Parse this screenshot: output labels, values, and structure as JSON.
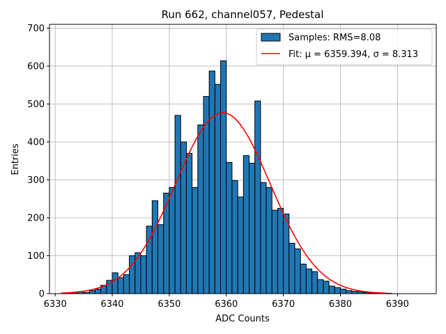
{
  "chart_data": {
    "type": "histogram",
    "title": "Run 662, channel057, Pedestal",
    "xlabel": "ADC Counts",
    "ylabel": "Entries",
    "xlim": [
      6329.0,
      6396.8
    ],
    "ylim": [
      0,
      710
    ],
    "grid": true,
    "xticks": [
      6330,
      6340,
      6350,
      6360,
      6370,
      6380,
      6390
    ],
    "yticks": [
      0,
      100,
      200,
      300,
      400,
      500,
      600,
      700
    ],
    "bin_width": 1,
    "bin_start": 6331,
    "bar_color": "#1f77b4",
    "bar_edge_color": "#000000",
    "counts": [
      0,
      2,
      3,
      5,
      3,
      8,
      12,
      22,
      35,
      55,
      42,
      50,
      100,
      108,
      100,
      178,
      245,
      182,
      265,
      280,
      470,
      400,
      370,
      280,
      445,
      520,
      587,
      552,
      614,
      346,
      298,
      255,
      364,
      344,
      508,
      293,
      280,
      220,
      225,
      210,
      133,
      118,
      78,
      65,
      58,
      37,
      33,
      20,
      16,
      12,
      8,
      6,
      5,
      3,
      2,
      2,
      1,
      1,
      0,
      0,
      0,
      0,
      0
    ],
    "fit": {
      "type": "gaussian",
      "mu": 6359.394,
      "sigma": 8.313,
      "amplitude": 477,
      "x_range": [
        6331,
        6388
      ],
      "color": "#ff0000"
    },
    "legend": {
      "position": "top-right",
      "entries": [
        {
          "kind": "patch",
          "label": "Samples: RMS=8.08"
        },
        {
          "kind": "line",
          "label": "Fit: μ = 6359.394, σ = 8.313"
        }
      ]
    }
  }
}
